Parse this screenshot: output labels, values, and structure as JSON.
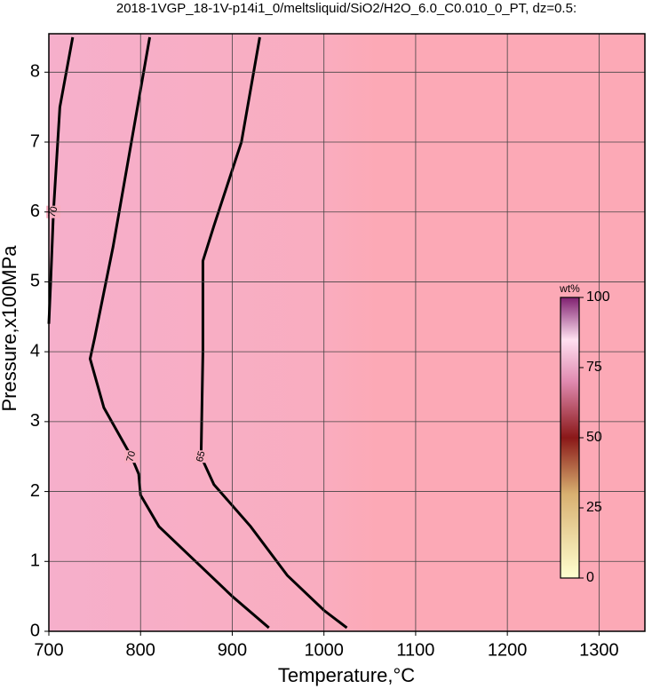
{
  "chart_data": {
    "type": "contour",
    "title": "2018-1VGP_18-1V-p14i1_0/meltsliquid/SiO2/H2O_6.0_C0.010_0_PT, dz=0.5:",
    "x_label": "Temperature,°C",
    "y_label": "Pressure,x100MPa",
    "xlim": [
      700,
      1350
    ],
    "ylim": [
      0,
      8.55
    ],
    "xticks": [
      700,
      800,
      900,
      1000,
      1100,
      1200,
      1300
    ],
    "yticks": [
      0,
      1,
      2,
      3,
      4,
      5,
      6,
      7,
      8
    ],
    "grid": true,
    "contours": [
      {
        "level": 70,
        "x": [
          810,
          790,
          770,
          750,
          745,
          760,
          790,
          798,
          800,
          820,
          860,
          900,
          940
        ],
        "y": [
          8.5,
          7,
          5.5,
          4.2,
          3.9,
          3.2,
          2.5,
          2.25,
          1.95,
          1.5,
          1.0,
          0.5,
          0.05
        ]
      },
      {
        "level": 65,
        "x": [
          930,
          910,
          880,
          868,
          868,
          866,
          880,
          920,
          960,
          1000,
          1025
        ],
        "y": [
          8.5,
          7,
          5.8,
          5.3,
          4,
          2.5,
          2.1,
          1.5,
          0.8,
          0.3,
          0.05
        ]
      },
      {
        "level": 70,
        "x": [
          726,
          712,
          705,
          702,
          700
        ],
        "y": [
          8.5,
          7.5,
          6,
          5,
          4.4
        ]
      }
    ],
    "colorbar": {
      "label": "wt%",
      "lim": [
        0,
        100
      ],
      "ticks": [
        0,
        25,
        50,
        75,
        100
      ]
    }
  }
}
